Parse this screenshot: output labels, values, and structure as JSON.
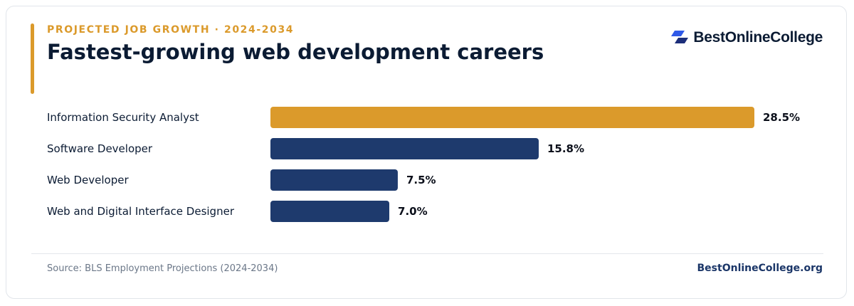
{
  "header": {
    "eyebrow": "PROJECTED JOB GROWTH · 2024-2034",
    "title": "Fastest-growing web development careers"
  },
  "brand": {
    "name": "BestOnlineCollege",
    "logo_icon": "brand-logo-icon"
  },
  "colors": {
    "highlight": "#db9a2b",
    "bar": "#1e3a6d",
    "text": "#0b1b33"
  },
  "chart_data": {
    "type": "bar",
    "orientation": "horizontal",
    "categories": [
      "Information Security Analyst",
      "Software Developer",
      "Web Developer",
      "Web and Digital Interface Designer"
    ],
    "values": [
      28.5,
      15.8,
      7.5,
      7.0
    ],
    "value_labels": [
      "28.5%",
      "15.8%",
      "7.5%",
      "7.0%"
    ],
    "highlight_index": 0,
    "xlim": [
      0,
      28.5
    ],
    "grid": false,
    "title": "",
    "xlabel": "",
    "ylabel": ""
  },
  "footer": {
    "source": "Source: BLS Employment Projections (2024-2034)",
    "site": "BestOnlineCollege.org"
  }
}
